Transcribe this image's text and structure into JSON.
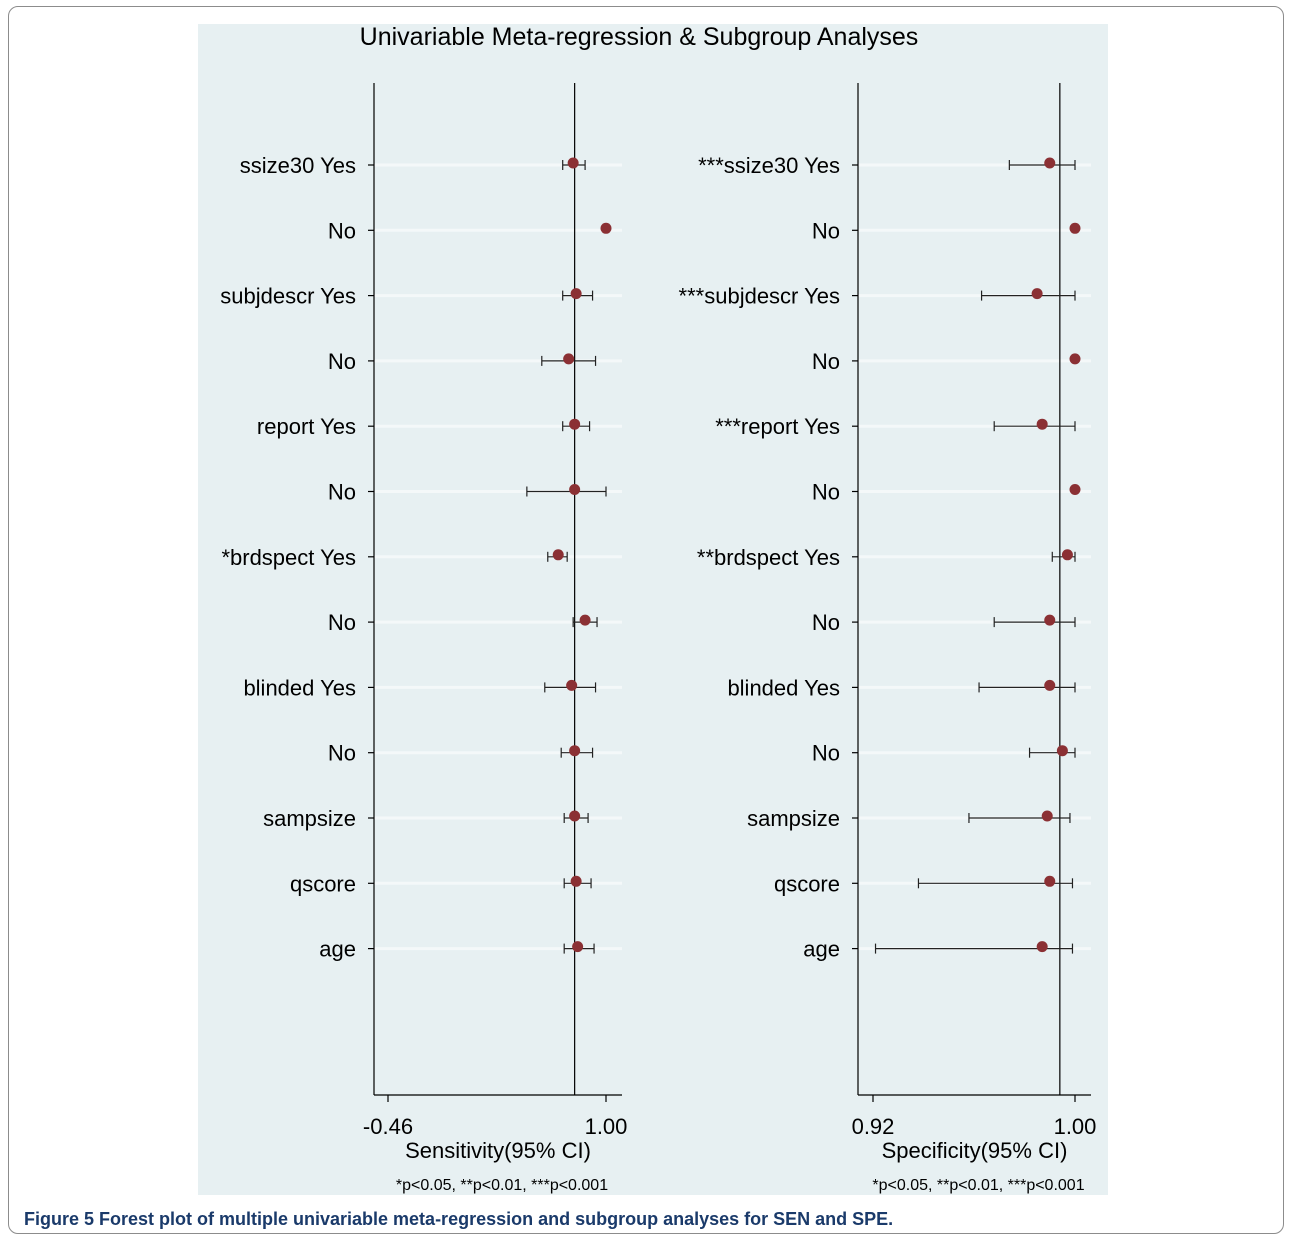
{
  "chart_data": {
    "type": "forest",
    "title": "Univariable Meta-regression & Subgroup Analyses",
    "footnote": "*p<0.05, **p<0.01, ***p<0.001",
    "row_labels_left": [
      "ssize30 Yes",
      "No",
      "subjdescr Yes",
      "No",
      "report Yes",
      "No",
      "*brdspect Yes",
      "No",
      "blinded Yes",
      "No",
      "sampsize",
      "qscore",
      "age"
    ],
    "row_labels_right": [
      "***ssize30 Yes",
      "No",
      "***subjdescr Yes",
      "No",
      "***report Yes",
      "No",
      "**brdspect Yes",
      "No",
      "blinded Yes",
      "No",
      "sampsize",
      "qscore",
      "age"
    ],
    "panels": [
      {
        "name": "sensitivity",
        "xlabel": "Sensitivity(95% CI)",
        "tick_labels": [
          "-0.46",
          "1.00"
        ],
        "xlim": [
          -0.46,
          1.0
        ],
        "reference_line": 0.79,
        "estimates": [
          0.78,
          1.0,
          0.8,
          0.75,
          0.79,
          0.79,
          0.68,
          0.86,
          0.77,
          0.79,
          0.79,
          0.8,
          0.81
        ],
        "ci_lower": [
          0.71,
          null,
          0.71,
          0.57,
          0.71,
          0.47,
          0.61,
          0.78,
          0.59,
          0.7,
          0.72,
          0.72,
          0.72
        ],
        "ci_upper": [
          0.86,
          null,
          0.91,
          0.93,
          0.89,
          1.0,
          0.74,
          0.94,
          0.93,
          0.91,
          0.88,
          0.9,
          0.92
        ]
      },
      {
        "name": "specificity",
        "xlabel": "Specificity(95% CI)",
        "tick_labels": [
          "0.92",
          "1.00"
        ],
        "xlim": [
          0.92,
          1.0
        ],
        "reference_line": 0.994,
        "estimates": [
          0.99,
          1.0,
          0.985,
          1.0,
          0.987,
          1.0,
          0.997,
          0.99,
          0.99,
          0.995,
          0.989,
          0.99,
          0.987
        ],
        "ci_lower": [
          0.974,
          null,
          0.963,
          null,
          0.968,
          null,
          0.991,
          0.968,
          0.962,
          0.982,
          0.958,
          0.938,
          0.921
        ],
        "ci_upper": [
          1.0,
          null,
          1.0,
          null,
          1.0,
          null,
          1.0,
          1.0,
          1.0,
          1.0,
          0.998,
          0.999,
          0.999
        ]
      }
    ]
  },
  "caption": {
    "label": "Figure 5",
    "text": " Forest plot of multiple univariable meta-regression and subgroup analyses for SEN and SPE."
  },
  "colors": {
    "background": "#e7f0f2",
    "marker": "#8b3034",
    "axis": "#000000",
    "gridline": "#f4f8f9"
  }
}
